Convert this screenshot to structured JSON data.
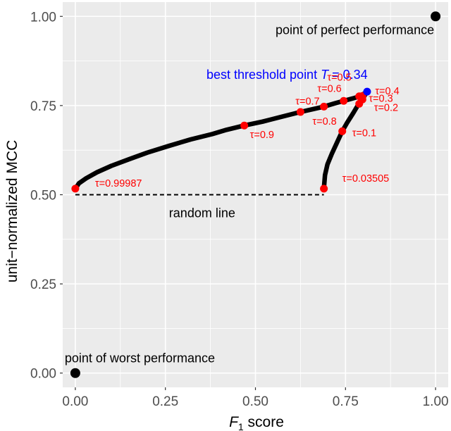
{
  "chart_data": {
    "type": "scatter",
    "xlabel_main": "F",
    "xlabel_sub": "1",
    "xlabel_rest": " score",
    "ylabel": "unit−normalized MCC",
    "xlim": [
      -0.035,
      1.035
    ],
    "ylim": [
      -0.04,
      1.04
    ],
    "x_ticks": [
      0.0,
      0.25,
      0.5,
      0.75,
      1.0
    ],
    "x_tick_labels": [
      "0.00",
      "0.25",
      "0.50",
      "0.75",
      "1.00"
    ],
    "y_ticks": [
      0.0,
      0.25,
      0.5,
      0.75,
      1.0
    ],
    "y_tick_labels": [
      "0.00",
      "0.25",
      "0.50",
      "0.75",
      "1.00"
    ],
    "grid": true,
    "curve": {
      "color": "#000000",
      "upper_branch": [
        [
          0.0,
          0.517
        ],
        [
          0.01,
          0.532
        ],
        [
          0.03,
          0.546
        ],
        [
          0.06,
          0.563
        ],
        [
          0.1,
          0.581
        ],
        [
          0.15,
          0.6
        ],
        [
          0.2,
          0.618
        ],
        [
          0.26,
          0.637
        ],
        [
          0.32,
          0.655
        ],
        [
          0.38,
          0.67
        ],
        [
          0.42,
          0.682
        ],
        [
          0.469,
          0.694
        ],
        [
          0.52,
          0.705
        ],
        [
          0.57,
          0.718
        ],
        [
          0.625,
          0.732
        ],
        [
          0.66,
          0.74
        ],
        [
          0.69,
          0.747
        ],
        [
          0.72,
          0.756
        ],
        [
          0.745,
          0.763
        ],
        [
          0.77,
          0.77
        ],
        [
          0.79,
          0.776
        ],
        [
          0.81,
          0.789
        ]
      ],
      "lower_branch": [
        [
          0.69,
          0.517
        ],
        [
          0.693,
          0.555
        ],
        [
          0.7,
          0.585
        ],
        [
          0.712,
          0.615
        ],
        [
          0.728,
          0.65
        ],
        [
          0.741,
          0.678
        ],
        [
          0.755,
          0.703
        ],
        [
          0.772,
          0.73
        ],
        [
          0.785,
          0.752
        ],
        [
          0.797,
          0.768
        ],
        [
          0.81,
          0.789
        ]
      ]
    },
    "tau_points": [
      {
        "tau": "0.99987",
        "x": 0.0,
        "y": 0.517
      },
      {
        "tau": "0.9",
        "x": 0.469,
        "y": 0.694
      },
      {
        "tau": "0.8",
        "x": 0.625,
        "y": 0.732
      },
      {
        "tau": "0.7",
        "x": 0.69,
        "y": 0.747
      },
      {
        "tau": "0.6",
        "x": 0.745,
        "y": 0.763
      },
      {
        "tau": "0.5",
        "x": 0.788,
        "y": 0.776
      },
      {
        "tau": "0.4",
        "x": 0.797,
        "y": 0.777
      },
      {
        "tau": "0.3",
        "x": 0.797,
        "y": 0.767
      },
      {
        "tau": "0.2",
        "x": 0.788,
        "y": 0.755
      },
      {
        "tau": "0.1",
        "x": 0.741,
        "y": 0.678
      },
      {
        "tau": "0.03505",
        "x": 0.69,
        "y": 0.517
      }
    ],
    "tau_symbol": "τ",
    "best_point": {
      "x": 0.81,
      "y": 0.789,
      "color": "#0000ff"
    },
    "best_label_prefix": "best threshold point  ",
    "best_label_T": "T",
    "best_label_value": " = 0.34",
    "perfect_point": {
      "x": 1.0,
      "y": 1.0
    },
    "perfect_label": "point of perfect performance",
    "worst_point": {
      "x": 0.0,
      "y": 0.0
    },
    "worst_label": "point of worst performance",
    "random_line": {
      "x1": 0.0,
      "x2": 0.69,
      "y": 0.5
    },
    "random_label": "random line",
    "colors": {
      "panel": "#ebebeb",
      "grid_major": "#ffffff",
      "tau_points": "#ff0000",
      "text_axis": "#4d4d4d"
    }
  }
}
